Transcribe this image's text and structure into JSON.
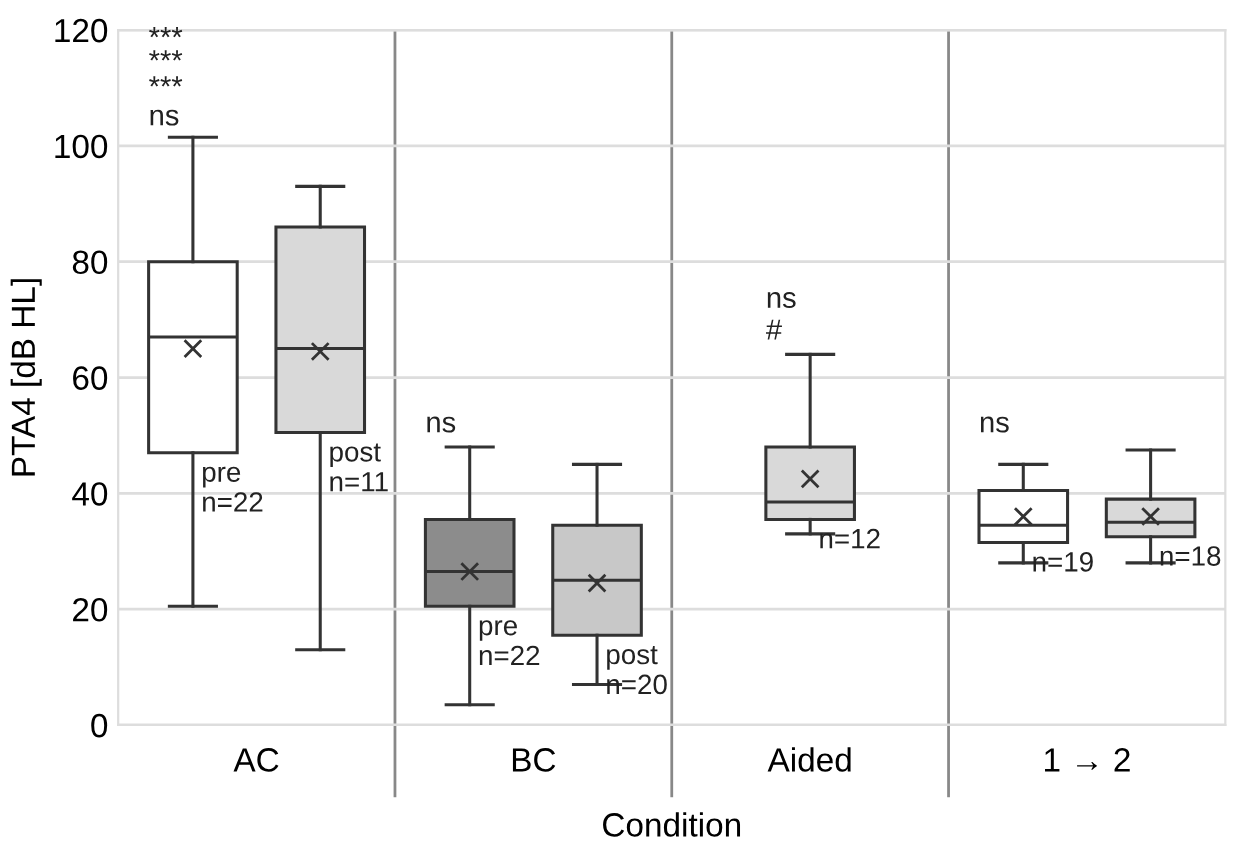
{
  "chart_data": {
    "type": "box",
    "xlabel": "Condition",
    "ylabel": "PTA4 [dB HL]",
    "categories": [
      "AC",
      "BC",
      "Aided",
      "1 → 2"
    ],
    "ylim": [
      0,
      120
    ],
    "yticks": [
      0,
      20,
      40,
      60,
      80,
      100,
      120
    ],
    "grid": "y",
    "marker": "cross",
    "series": [
      {
        "colors": [
          "#ffffff",
          "#8c8c8c",
          "#d9d9d9",
          "#ffffff"
        ],
        "value_labels": [
          "pre\nn=22",
          "pre\nn=22",
          "n=12",
          "n=19"
        ],
        "boxes": [
          {
            "low": 20.5,
            "q1": 47,
            "median": 67,
            "q3": 80,
            "high": 101.5,
            "mean": 65
          },
          {
            "low": 3.5,
            "q1": 20.5,
            "median": 26.5,
            "q3": 35.5,
            "high": 48,
            "mean": 26.5
          },
          {
            "low": 33,
            "q1": 35.5,
            "median": 38.5,
            "q3": 48,
            "high": 64,
            "mean": 42.5
          },
          {
            "low": 28,
            "q1": 31.5,
            "median": 34.5,
            "q3": 40.5,
            "high": 45,
            "mean": 36
          }
        ]
      },
      {
        "colors": [
          "#d9d9d9",
          "#c8c8c8",
          null,
          "#d9d9d9"
        ],
        "value_labels": [
          "post\nn=11",
          "post\nn=20",
          null,
          "n=18"
        ],
        "boxes": [
          {
            "low": 13,
            "q1": 50.5,
            "median": 65,
            "q3": 86,
            "high": 93,
            "mean": 64.5
          },
          {
            "low": 7,
            "q1": 15.5,
            "median": 25,
            "q3": 34.5,
            "high": 45,
            "mean": 24.5
          },
          null,
          {
            "low": 28,
            "q1": 32.5,
            "median": 35,
            "q3": 39,
            "high": 47.5,
            "mean": 36
          }
        ]
      }
    ],
    "annotations": [
      "***",
      "***",
      "***",
      "ns",
      "ns",
      "ns",
      "#",
      "ns"
    ]
  }
}
